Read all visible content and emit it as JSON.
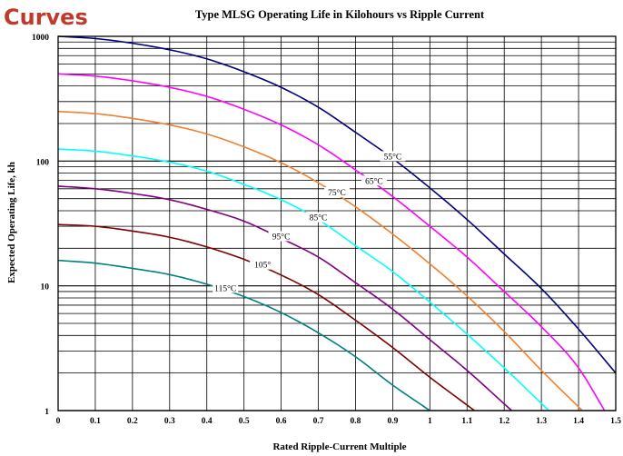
{
  "slide": {
    "heading_fragment": "Curves",
    "heading_color": "#C0392B"
  },
  "chart_data": {
    "type": "line",
    "title": "Type MLSG Operating Life in Kilohours vs Ripple Current",
    "xlabel": "Rated Ripple-Current Multiple",
    "ylabel": "Expected Operating Life, kh",
    "x_scale": "linear",
    "y_scale": "log",
    "xlim": [
      0,
      1.5
    ],
    "ylim": [
      1,
      1000
    ],
    "grid": true,
    "legend": "none",
    "x_ticks": [
      "0",
      "0.1",
      "0.2",
      "0.3",
      "0.4",
      "0.5",
      "0.6",
      "0.7",
      "0.8",
      "0.9",
      "1",
      "1.1",
      "1.2",
      "1.3",
      "1.4",
      "1.5"
    ],
    "y_ticks": [
      "1",
      "10",
      "100",
      "1000"
    ],
    "series": [
      {
        "name": "55°C",
        "label_at": 0.9,
        "color": "#000080",
        "x": [
          0,
          0.1,
          0.2,
          0.3,
          0.4,
          0.5,
          0.6,
          0.7,
          0.8,
          0.9,
          1.0,
          1.1,
          1.2,
          1.3,
          1.4,
          1.5
        ],
        "y": [
          1000,
          960,
          880,
          780,
          660,
          520,
          390,
          270,
          170,
          105,
          61,
          34,
          18,
          9.5,
          4.5,
          2.0
        ]
      },
      {
        "name": "65°C",
        "label_at": 0.85,
        "color": "#FF00FF",
        "x": [
          0,
          0.1,
          0.2,
          0.3,
          0.4,
          0.5,
          0.6,
          0.7,
          0.8,
          0.9,
          1.0,
          1.1,
          1.2,
          1.3,
          1.4,
          1.47
        ],
        "y": [
          500,
          480,
          440,
          390,
          330,
          260,
          195,
          135,
          85,
          52,
          30,
          17,
          9,
          4.7,
          2.2,
          1.0
        ]
      },
      {
        "name": "75°C",
        "label_at": 0.75,
        "color": "#F08030",
        "x": [
          0,
          0.1,
          0.2,
          0.3,
          0.4,
          0.5,
          0.6,
          0.7,
          0.8,
          0.9,
          1.0,
          1.1,
          1.2,
          1.3,
          1.41
        ],
        "y": [
          250,
          240,
          220,
          195,
          165,
          130,
          97,
          67,
          43,
          26,
          15,
          8.3,
          4.3,
          2.1,
          1.0
        ]
      },
      {
        "name": "85°C",
        "label_at": 0.7,
        "color": "#00FFFF",
        "x": [
          0,
          0.1,
          0.2,
          0.3,
          0.4,
          0.5,
          0.6,
          0.7,
          0.8,
          0.9,
          1.0,
          1.1,
          1.2,
          1.32
        ],
        "y": [
          125,
          120,
          110,
          98,
          83,
          65,
          49,
          34,
          21,
          13,
          7.4,
          4.1,
          2.2,
          1.0
        ]
      },
      {
        "name": "95°C",
        "label_at": 0.6,
        "color": "#800080",
        "x": [
          0,
          0.1,
          0.2,
          0.3,
          0.4,
          0.5,
          0.6,
          0.7,
          0.8,
          0.9,
          1.0,
          1.1,
          1.22
        ],
        "y": [
          63,
          60,
          55,
          49,
          41,
          33,
          24,
          17,
          10.6,
          6.5,
          3.7,
          2.1,
          1.0
        ]
      },
      {
        "name": "105°",
        "label_at": 0.55,
        "color": "#800000",
        "x": [
          0,
          0.1,
          0.2,
          0.3,
          0.4,
          0.5,
          0.6,
          0.7,
          0.8,
          0.9,
          1.0,
          1.12
        ],
        "y": [
          31,
          30,
          27.5,
          24.5,
          20.5,
          16.3,
          12.2,
          8.5,
          5.3,
          3.2,
          1.85,
          1.0
        ]
      },
      {
        "name": "115°C",
        "label_at": 0.45,
        "color": "#008080",
        "x": [
          0,
          0.1,
          0.2,
          0.3,
          0.4,
          0.5,
          0.6,
          0.7,
          0.8,
          0.9,
          1.0
        ],
        "y": [
          16,
          15.2,
          13.8,
          12.3,
          10.3,
          8.2,
          6.1,
          4.2,
          2.7,
          1.6,
          1.0
        ]
      }
    ]
  }
}
